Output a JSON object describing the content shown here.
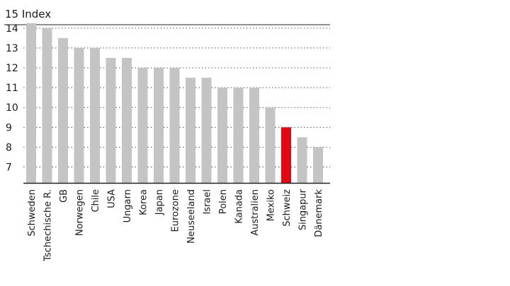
{
  "chart_data": {
    "type": "bar",
    "title": "15 Index",
    "xlabel": "",
    "ylabel": "",
    "ylim": [
      6.2,
      15
    ],
    "y_ticks": [
      "14",
      "13",
      "12",
      "11",
      "10",
      "9",
      "8",
      "7"
    ],
    "grid": true,
    "categories": [
      "Schweden",
      "Tschechische R.",
      "GB",
      "Norwegen",
      "Chile",
      "USA",
      "Ungarn",
      "Korea",
      "Japan",
      "Eurozone",
      "Neuseeland",
      "Israel",
      "Polen",
      "Kanada",
      "Australien",
      "Mexiko",
      "Schweiz",
      "Singapur",
      "Dänemark"
    ],
    "values": [
      14.25,
      14.0,
      13.5,
      13.0,
      13.0,
      12.5,
      12.5,
      12.0,
      12.0,
      12.0,
      11.5,
      11.5,
      11.0,
      11.0,
      11.0,
      10.0,
      9.0,
      8.5,
      8.0
    ],
    "highlight": "Schweiz",
    "colors": {
      "bar": "#c4c4c4",
      "highlight": "#e30613",
      "text": "#1a1a1a",
      "highlight_text": "#e30613",
      "grid": "#555555",
      "axis": "#222222"
    }
  }
}
